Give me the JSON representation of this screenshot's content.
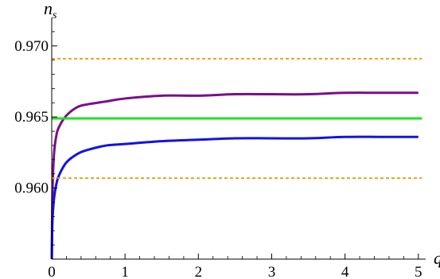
{
  "chart_data": {
    "type": "line",
    "xlabel": "q",
    "ylabel": {
      "main": "n",
      "sub": "s"
    },
    "xlim": [
      0,
      5.1
    ],
    "ylim": [
      0.955,
      0.972
    ],
    "x_ticks": [
      0,
      1,
      2,
      3,
      4,
      5
    ],
    "y_ticks": [
      0.96,
      0.965,
      0.97
    ],
    "x_tick_labels": [
      "0",
      "1",
      "2",
      "3",
      "4",
      "5"
    ],
    "y_tick_labels": [
      "0.960",
      "0.965",
      "0.970"
    ],
    "grid": false,
    "legend": "none",
    "series": [
      {
        "color": "#7b0d8c",
        "style": "solid",
        "x": [
          0.001,
          0.01,
          0.03,
          0.06,
          0.1,
          0.2,
          0.35,
          0.5,
          0.75,
          1,
          1.5,
          2,
          2.5,
          3,
          3.5,
          4,
          4.5,
          5
        ],
        "y": [
          0.955,
          0.9597,
          0.9623,
          0.9636,
          0.9643,
          0.9651,
          0.9657,
          0.9659,
          0.9661,
          0.9663,
          0.9665,
          0.9665,
          0.9666,
          0.9666,
          0.9666,
          0.9667,
          0.9667,
          0.9667
        ]
      },
      {
        "color": "#1212e6",
        "style": "solid",
        "x": [
          0.001,
          0.01,
          0.03,
          0.06,
          0.1,
          0.2,
          0.35,
          0.5,
          0.75,
          1,
          1.5,
          2,
          2.5,
          3,
          3.5,
          4,
          4.5,
          5
        ],
        "y": [
          0.955,
          0.9577,
          0.9592,
          0.9602,
          0.9609,
          0.9618,
          0.9624,
          0.9627,
          0.963,
          0.9631,
          0.9633,
          0.9634,
          0.9635,
          0.9635,
          0.9635,
          0.9636,
          0.9636,
          0.9636
        ]
      },
      {
        "color": "#22e022",
        "style": "solid",
        "x": [
          0,
          5.05
        ],
        "y": [
          0.9649,
          0.9649
        ]
      },
      {
        "color": "#f0a020",
        "style": "dashed",
        "x": [
          0,
          5.05
        ],
        "y": [
          0.9691,
          0.9691
        ]
      },
      {
        "color": "#f0a020",
        "style": "dashed",
        "x": [
          0,
          5.05
        ],
        "y": [
          0.9607,
          0.9607
        ]
      }
    ]
  }
}
